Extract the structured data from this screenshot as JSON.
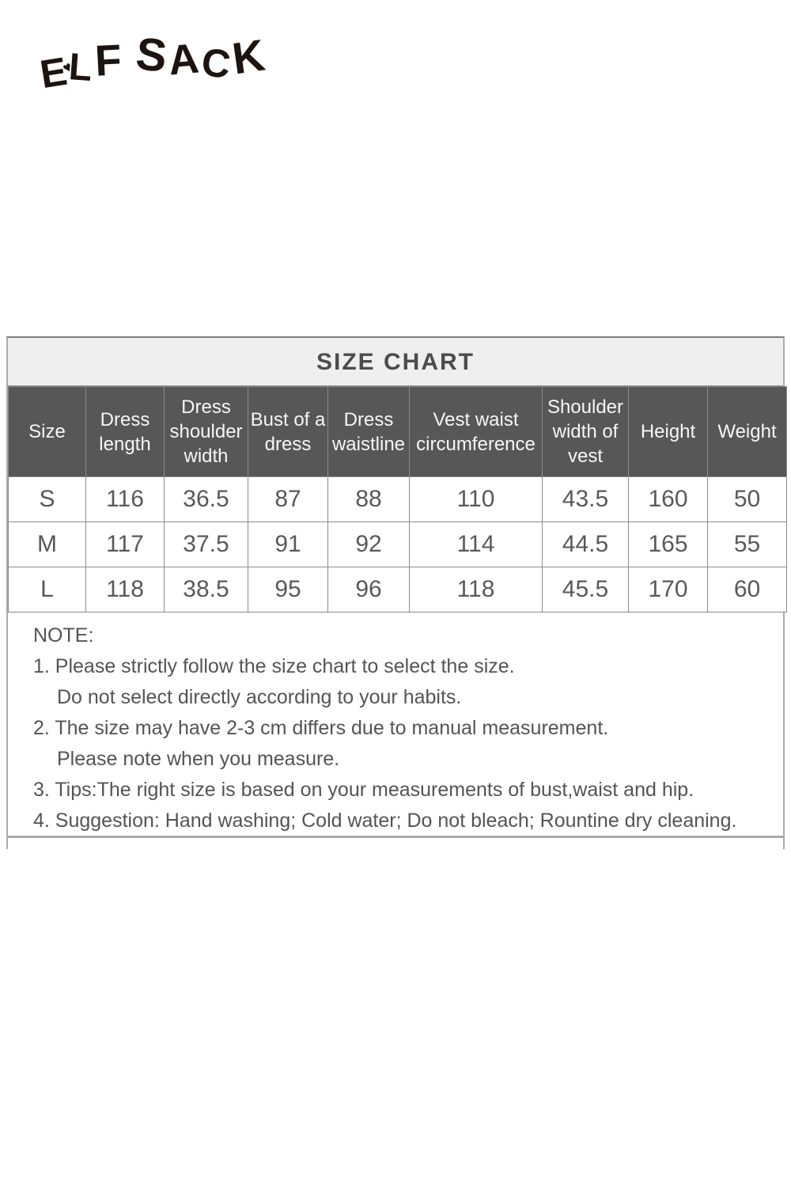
{
  "logo": {
    "text": "ELF SACK",
    "letters": [
      "E",
      "L",
      "F",
      "S",
      "A",
      "C",
      "K"
    ],
    "heart": "♥"
  },
  "size_chart": {
    "title": "SIZE CHART",
    "columns": [
      "Size",
      "Dress length",
      "Dress shoulder width",
      "Bust of a dress",
      "Dress waistline",
      "Vest waist circumference",
      "Shoulder width of vest",
      "Height",
      "Weight"
    ],
    "rows": [
      {
        "values": [
          "S",
          "116",
          "36.5",
          "87",
          "88",
          "110",
          "43.5",
          "160",
          "50"
        ]
      },
      {
        "values": [
          "M",
          "117",
          "37.5",
          "91",
          "92",
          "114",
          "44.5",
          "165",
          "55"
        ]
      },
      {
        "values": [
          "L",
          "118",
          "38.5",
          "95",
          "96",
          "118",
          "45.5",
          "170",
          "60"
        ]
      }
    ]
  },
  "note": {
    "heading": "NOTE:",
    "lines": [
      "1. Please strictly follow the size chart to select the size.",
      "Do not select directly according to your habits.",
      "2. The size may have 2-3 cm differs due to manual measurement.",
      "Please note when you measure.",
      "3. Tips:The right size is based on your measurements of bust,waist and hip.",
      "4. Suggestion: Hand washing; Cold water; Do not bleach; Rountine dry cleaning."
    ]
  },
  "colors": {
    "header_bg": "#575757",
    "title_bg": "#efefef",
    "border": "#8b8b8b",
    "text": "#595959",
    "logo": "#1d1410"
  }
}
